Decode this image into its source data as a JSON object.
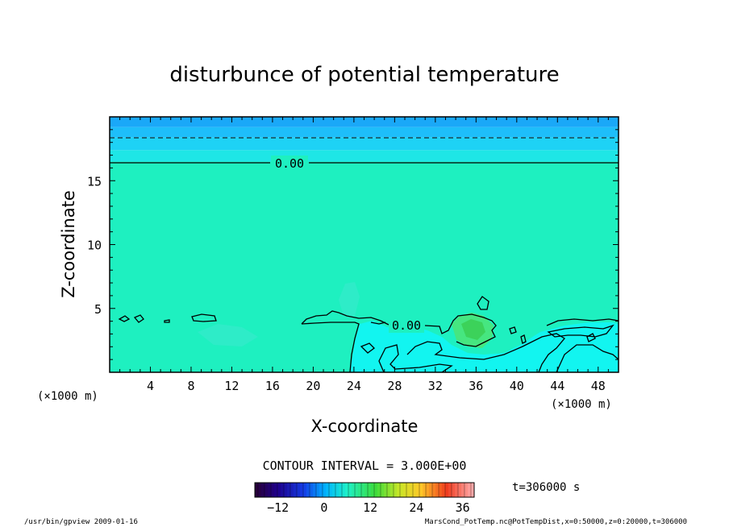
{
  "chart_data": {
    "type": "heatmap",
    "title": "disturbunce of potential temperature",
    "xlabel": "X-coordinate",
    "ylabel": "Z-coordinate",
    "x_unit_left": "(×1000 m)",
    "x_unit_right": "(×1000 m)",
    "xlim": [
      0,
      50
    ],
    "ylim": [
      0,
      20
    ],
    "x_ticks": [
      "4",
      "8",
      "12",
      "16",
      "20",
      "24",
      "28",
      "32",
      "36",
      "40",
      "44",
      "48"
    ],
    "y_ticks": [
      "5",
      "10",
      "15"
    ],
    "contour_labels": [
      "0.00",
      "0.00"
    ],
    "contour_interval": "CONTOUR INTERVAL = 3.000E+00",
    "colorbar": {
      "ticks": [
        "−12",
        "0",
        "12",
        "24",
        "36"
      ],
      "range": [
        -18,
        39
      ]
    },
    "time_label": "t=306000 s",
    "field_levels": [
      {
        "z_from": 0,
        "z_to": 16.5,
        "value": 0,
        "color": "#1ef0c0"
      },
      {
        "z_from": 16.5,
        "z_to": 17.4,
        "value": -3,
        "color": "#1ee6e6"
      },
      {
        "z_from": 17.4,
        "z_to": 18.4,
        "value": -6,
        "color": "#1ed2f5"
      },
      {
        "z_from": 18.4,
        "z_to": 19.2,
        "value": -9,
        "color": "#1ebefa"
      },
      {
        "z_from": 19.2,
        "z_to": 20,
        "value": -12,
        "color": "#1aa8f8"
      }
    ]
  },
  "footer": {
    "left": "/usr/bin/gpview   2009-01-16",
    "right": "MarsCond_PotTemp.nc@PotTempDist,x=0:50000,z=0:20000,t=306000"
  },
  "colors": {
    "base": "#1ef0c0",
    "cool": "#12f5f0",
    "warm": "#46e680",
    "warm_core": "#3cd25a"
  }
}
